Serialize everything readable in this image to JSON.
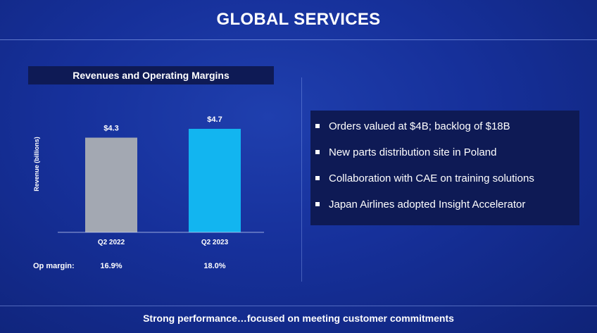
{
  "page": {
    "title": "GLOBAL SERVICES",
    "footer": "Strong performance…focused on meeting customer commitments"
  },
  "chart_data": {
    "type": "bar",
    "title": "Revenues and Operating Margins",
    "ylabel": "Revenue (billions)",
    "categories": [
      "Q2 2022",
      "Q2 2023"
    ],
    "values": [
      4.3,
      4.7
    ],
    "value_labels": [
      "$4.3",
      "$4.7"
    ],
    "bar_colors": [
      "#a3a8b2",
      "#12b5f0"
    ],
    "ylim": [
      0,
      4.7
    ],
    "grid": false,
    "op_margin_label": "Op margin:",
    "op_margins": [
      "16.9%",
      "18.0%"
    ]
  },
  "bullets": [
    "Orders valued at $4B; backlog of $18B",
    "New parts distribution site in Poland",
    "Collaboration with CAE on training solutions",
    "Japan Airlines adopted Insight Accelerator"
  ],
  "colors": {
    "background": "#16309a",
    "panel": "#0e1a55",
    "bar_2022": "#a3a8b2",
    "bar_2023": "#12b5f0"
  }
}
